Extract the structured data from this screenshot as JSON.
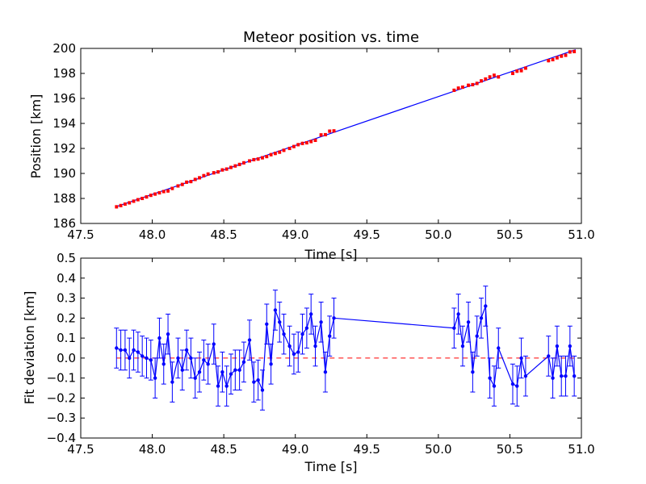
{
  "chart_data": [
    {
      "type": "line",
      "title": "Meteor position vs. time",
      "xlabel": "Time [s]",
      "ylabel": "Position [km]",
      "xlim": [
        47.5,
        51.0
      ],
      "ylim": [
        186,
        200
      ],
      "xticks": [
        "47.5",
        "48.0",
        "48.5",
        "49.0",
        "49.5",
        "50.0",
        "50.5",
        "51.0"
      ],
      "yticks": [
        "186",
        "188",
        "190",
        "192",
        "194",
        "196",
        "198",
        "200"
      ],
      "grid": false,
      "colors": {
        "points": "#ff0000",
        "fit": "#0000ff"
      },
      "fit_line": {
        "x": [
          47.75,
          50.96
        ],
        "y": [
          187.35,
          199.9
        ]
      },
      "points": {
        "x": [
          47.75,
          47.78,
          47.81,
          47.84,
          47.87,
          47.9,
          47.93,
          47.96,
          47.99,
          48.02,
          48.05,
          48.08,
          48.11,
          48.14,
          48.18,
          48.21,
          48.24,
          48.27,
          48.3,
          48.33,
          48.36,
          48.39,
          48.43,
          48.46,
          48.49,
          48.52,
          48.55,
          48.58,
          48.61,
          48.64,
          48.68,
          48.71,
          48.74,
          48.77,
          48.8,
          48.83,
          48.86,
          48.89,
          48.92,
          48.96,
          48.99,
          49.02,
          49.05,
          49.08,
          49.11,
          49.14,
          49.18,
          49.21,
          49.24,
          49.27,
          50.11,
          50.14,
          50.17,
          50.21,
          50.24,
          50.27,
          50.3,
          50.33,
          50.36,
          50.39,
          50.42,
          50.52,
          50.55,
          50.58,
          50.61,
          50.77,
          50.8,
          50.83,
          50.86,
          50.89,
          50.92,
          50.95
        ],
        "y": [
          187.33,
          187.43,
          187.55,
          187.65,
          187.78,
          187.9,
          188.0,
          188.12,
          188.25,
          188.35,
          188.45,
          188.55,
          188.6,
          188.8,
          189.0,
          189.12,
          189.3,
          189.35,
          189.52,
          189.65,
          189.82,
          189.95,
          190.05,
          190.12,
          190.28,
          190.35,
          190.48,
          190.6,
          190.72,
          190.85,
          191.0,
          191.1,
          191.15,
          191.25,
          191.35,
          191.5,
          191.6,
          191.7,
          191.85,
          192.0,
          192.15,
          192.3,
          192.4,
          192.45,
          192.55,
          192.65,
          193.08,
          193.1,
          193.38,
          193.4,
          196.65,
          196.82,
          196.9,
          197.05,
          197.1,
          197.2,
          197.4,
          197.55,
          197.72,
          197.85,
          197.72,
          198.0,
          198.18,
          198.22,
          198.42,
          199.02,
          199.1,
          199.25,
          199.38,
          199.45,
          199.72,
          199.75
        ]
      },
      "error": 0.1
    },
    {
      "type": "line",
      "title": "",
      "xlabel": "Time [s]",
      "ylabel": "Fit deviation [km]",
      "xlim": [
        47.5,
        51.0
      ],
      "ylim": [
        -0.4,
        0.5
      ],
      "xticks": [
        "47.5",
        "48.0",
        "48.5",
        "49.0",
        "49.5",
        "50.0",
        "50.5",
        "51.0"
      ],
      "yticks": [
        "−0.4",
        "−0.3",
        "−0.2",
        "−0.1",
        "0.0",
        "0.1",
        "0.2",
        "0.3",
        "0.4",
        "0.5"
      ],
      "grid": false,
      "colors": {
        "series": "#0000ff",
        "zero_line": "#ff0000"
      },
      "zero_line": 0.0,
      "x": [
        47.75,
        47.78,
        47.81,
        47.84,
        47.87,
        47.9,
        47.93,
        47.96,
        47.99,
        48.02,
        48.05,
        48.08,
        48.11,
        48.14,
        48.18,
        48.21,
        48.24,
        48.27,
        48.3,
        48.33,
        48.36,
        48.39,
        48.43,
        48.46,
        48.49,
        48.52,
        48.55,
        48.58,
        48.61,
        48.64,
        48.68,
        48.71,
        48.74,
        48.77,
        48.8,
        48.83,
        48.86,
        48.89,
        48.92,
        48.96,
        48.99,
        49.02,
        49.05,
        49.08,
        49.11,
        49.14,
        49.18,
        49.21,
        49.24,
        49.27,
        50.11,
        50.14,
        50.17,
        50.21,
        50.24,
        50.27,
        50.3,
        50.33,
        50.36,
        50.39,
        50.42,
        50.52,
        50.55,
        50.58,
        50.61,
        50.77,
        50.8,
        50.83,
        50.86,
        50.89,
        50.92,
        50.95
      ],
      "y": [
        0.05,
        0.04,
        0.04,
        0.0,
        0.04,
        0.03,
        0.01,
        0.0,
        -0.01,
        -0.1,
        0.1,
        -0.03,
        0.12,
        -0.12,
        0.0,
        -0.06,
        0.04,
        0.0,
        -0.1,
        -0.07,
        -0.01,
        -0.03,
        0.07,
        -0.14,
        -0.07,
        -0.14,
        -0.08,
        -0.06,
        -0.06,
        -0.02,
        0.09,
        -0.12,
        -0.11,
        -0.16,
        0.17,
        -0.03,
        0.24,
        0.18,
        0.12,
        0.06,
        0.02,
        0.03,
        0.12,
        0.15,
        0.22,
        0.06,
        0.18,
        -0.07,
        0.11,
        0.2,
        0.15,
        0.22,
        0.06,
        0.18,
        -0.07,
        0.11,
        0.2,
        0.26,
        -0.1,
        -0.14,
        0.05,
        -0.13,
        -0.14,
        0.0,
        -0.09,
        0.01,
        -0.1,
        0.06,
        -0.09,
        -0.09,
        0.06,
        -0.09
      ],
      "yerr": 0.1
    }
  ]
}
